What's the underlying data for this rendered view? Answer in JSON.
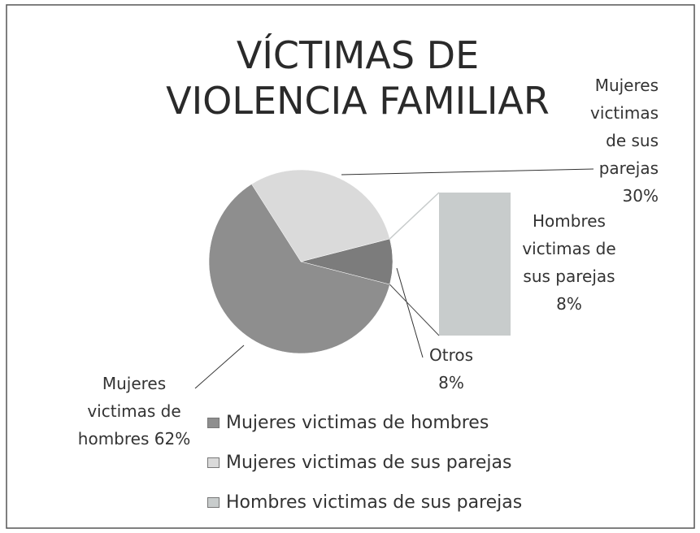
{
  "chart_data": {
    "type": "pie-of-pie",
    "title": "VÍCTIMAS DE VIOLENCIA FAMILIAR",
    "categories": [
      "Mujeres victimas de hombres",
      "Mujeres victimas de sus parejas",
      "Hombres victimas de sus parejas"
    ],
    "values": [
      62,
      30,
      8
    ],
    "value_labels": [
      "62%",
      "30%",
      "8%"
    ],
    "colors": [
      "#8e8e8e",
      "#dadada",
      "#c8cccc"
    ],
    "other_label": "Otros",
    "other_value": 8,
    "other_value_label": "8%",
    "other_color": "#7c7c7c"
  }
}
